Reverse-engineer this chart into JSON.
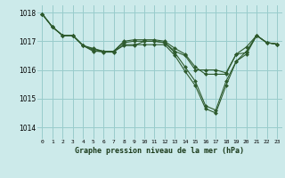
{
  "title": "Graphe pression niveau de la mer (hPa)",
  "background_color": "#cceaea",
  "grid_color": "#99cccc",
  "line_color": "#2d5a2d",
  "marker_color": "#2d5a2d",
  "xlim": [
    -0.5,
    23.5
  ],
  "ylim": [
    1013.6,
    1018.25
  ],
  "yticks": [
    1014,
    1015,
    1016,
    1017,
    1018
  ],
  "xticks": [
    0,
    1,
    2,
    3,
    4,
    5,
    6,
    7,
    8,
    9,
    10,
    11,
    12,
    13,
    14,
    15,
    16,
    17,
    18,
    19,
    20,
    21,
    22,
    23
  ],
  "lines": [
    [
      1017.95,
      1017.5,
      1017.2,
      1017.2,
      1016.85,
      1016.65,
      1016.65,
      1016.65,
      1016.85,
      1016.85,
      1017.0,
      1017.0,
      1016.95,
      1016.65,
      1016.5,
      1016.0,
      1016.0,
      1016.0,
      1015.9,
      1016.55,
      1016.6,
      1017.2,
      1016.95,
      1016.9
    ],
    [
      1017.95,
      1017.5,
      1017.2,
      1017.2,
      1016.85,
      1016.75,
      1016.65,
      1016.65,
      1017.0,
      1017.05,
      1017.05,
      1017.05,
      1017.0,
      1016.75,
      1016.55,
      1016.1,
      1015.85,
      1015.85,
      1015.85,
      1016.55,
      1016.8,
      1017.2,
      1016.95,
      1016.9
    ],
    [
      1017.95,
      1017.5,
      1017.2,
      1017.2,
      1016.85,
      1016.72,
      1016.65,
      1016.65,
      1016.95,
      1017.0,
      1017.0,
      1017.0,
      1016.95,
      1016.6,
      1016.1,
      1015.6,
      1014.75,
      1014.6,
      1015.6,
      1016.3,
      1016.65,
      1017.2,
      1016.95,
      1016.9
    ],
    [
      1017.95,
      1017.5,
      1017.2,
      1017.2,
      1016.85,
      1016.68,
      1016.62,
      1016.62,
      1016.88,
      1016.88,
      1016.88,
      1016.88,
      1016.88,
      1016.5,
      1015.95,
      1015.45,
      1014.65,
      1014.5,
      1015.45,
      1016.3,
      1016.55,
      1017.2,
      1016.95,
      1016.9
    ]
  ]
}
